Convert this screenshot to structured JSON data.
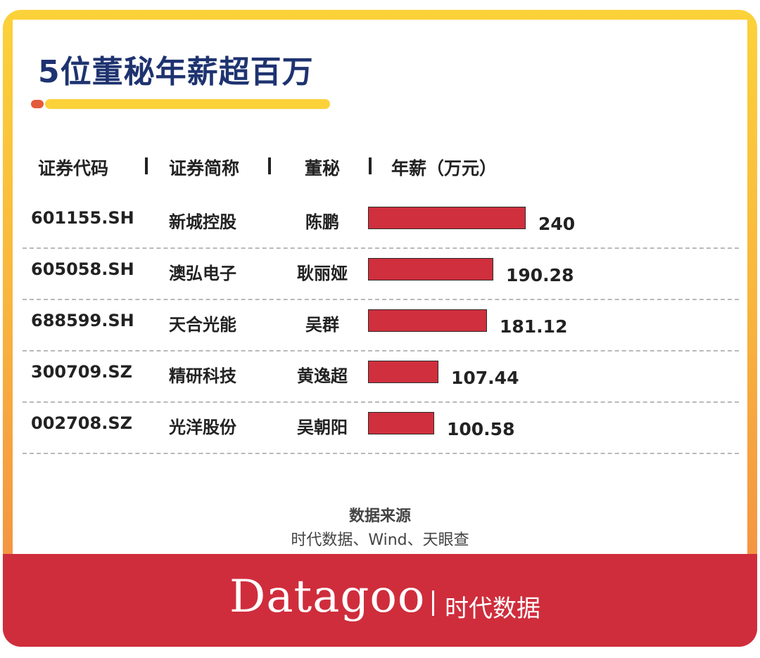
{
  "title": "5位董秘年薪超百万",
  "columns": {
    "code": "证券代码",
    "abbr": "证券简称",
    "secretary": "董秘",
    "salary": "年薪（万元）"
  },
  "rows": [
    {
      "code": "601155.SH",
      "abbr": "新城控股",
      "secretary": "陈鹏",
      "salary": "240"
    },
    {
      "code": "605058.SH",
      "abbr": "澳弘电子",
      "secretary": "耿丽娅",
      "salary": "190.28"
    },
    {
      "code": "688599.SH",
      "abbr": "天合光能",
      "secretary": "吴群",
      "salary": "181.12"
    },
    {
      "code": "300709.SZ",
      "abbr": "精研科技",
      "secretary": "黄逸超",
      "salary": "107.44"
    },
    {
      "code": "002708.SZ",
      "abbr": "光洋股份",
      "secretary": "吴朝阳",
      "salary": "100.58"
    }
  ],
  "chart_data": {
    "type": "bar",
    "categories": [
      "陈鹏",
      "耿丽娅",
      "吴群",
      "黄逸超",
      "吴朝阳"
    ],
    "values": [
      240,
      190.28,
      181.12,
      107.44,
      100.58
    ],
    "ylabel": "年薪（万元）",
    "bar_color": "#d02f3d",
    "grid": false
  },
  "source": {
    "label": "数据来源",
    "text": "时代数据、Wind、天眼查"
  },
  "footer": {
    "brand": "Datagoo",
    "brand_cn": "时代数据"
  },
  "colors": {
    "title": "#1e3370",
    "frame_top": "#fbd23a",
    "frame_bottom": "#f28a43",
    "footer": "#cf2d3c"
  }
}
